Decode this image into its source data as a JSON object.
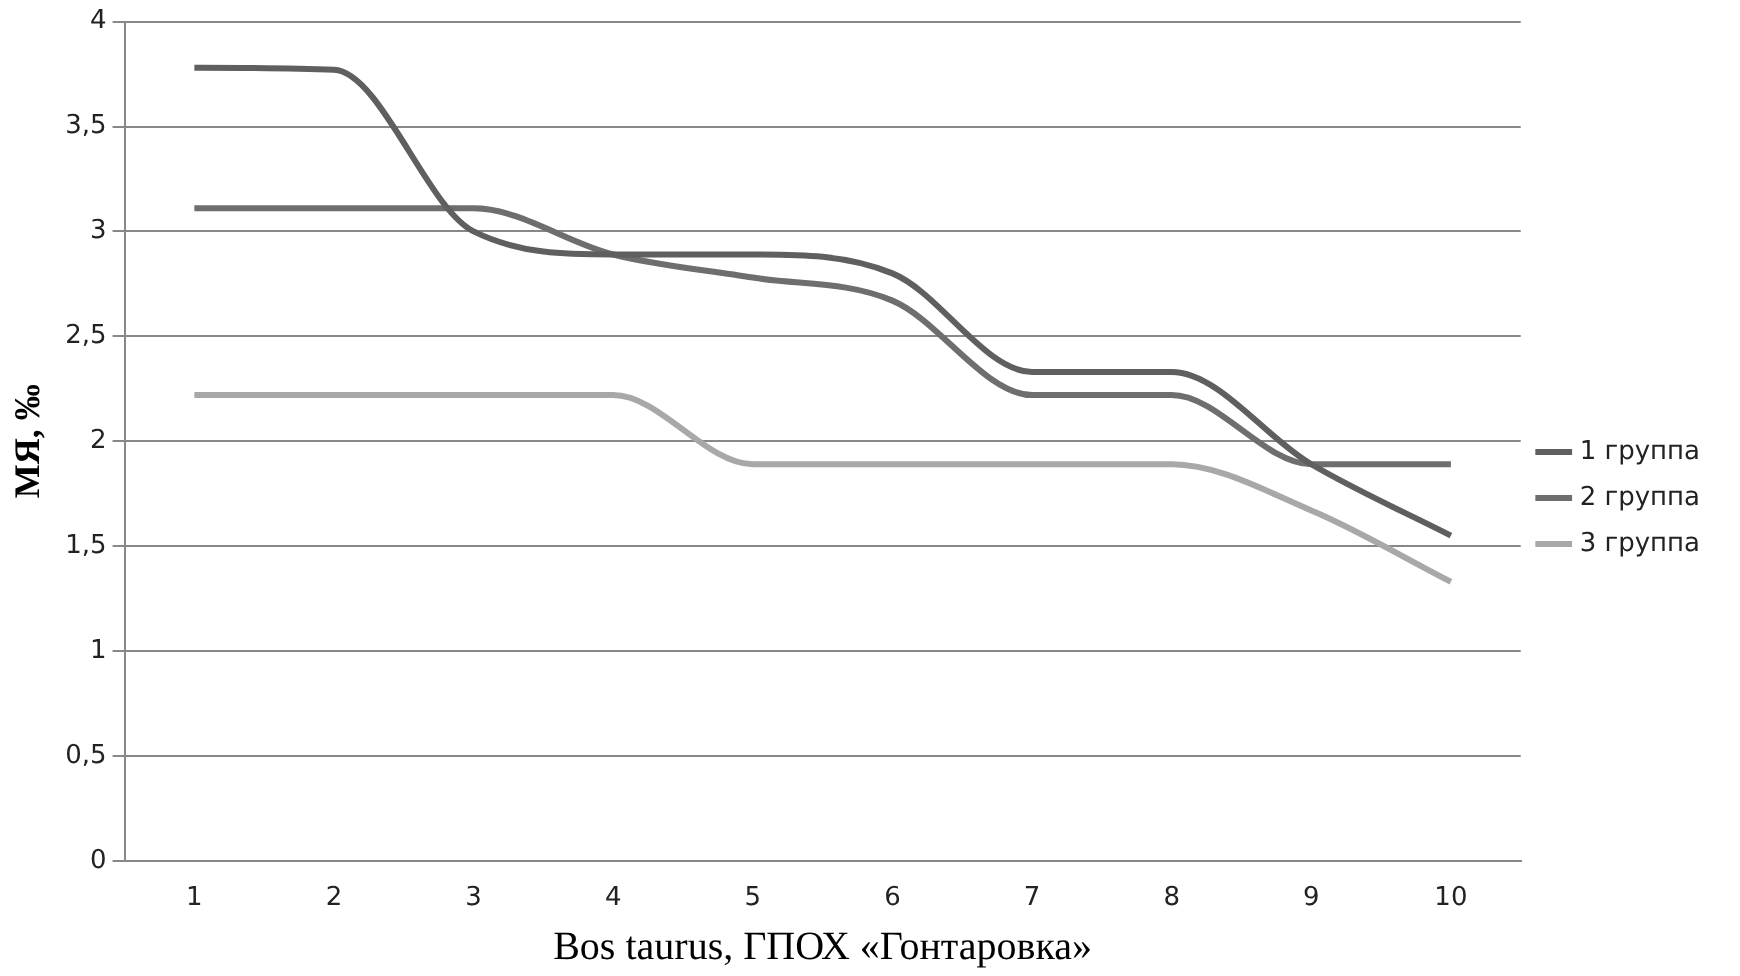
{
  "chart_data": {
    "type": "line",
    "xlabel": "Bos taurus, ГПОХ «Гонтаровка»",
    "ylabel": "МЯ, ‰",
    "categories": [
      "1",
      "2",
      "3",
      "4",
      "5",
      "6",
      "7",
      "8",
      "9",
      "10"
    ],
    "ylim": [
      0,
      4
    ],
    "yticks": [
      0,
      {
        "value": 0.5,
        "label": "0,5"
      },
      1,
      {
        "value": 1.5,
        "label": "1,5"
      },
      2,
      {
        "value": 2.5,
        "label": "2,5"
      },
      3,
      {
        "value": 3.5,
        "label": "3,5"
      },
      4
    ],
    "grid": "y",
    "legend": "right",
    "marker": "none",
    "line_style": "solid",
    "series": [
      {
        "name": "1 группа",
        "color": "#5f5f5f",
        "values": [
          3.78,
          3.77,
          3.0,
          2.89,
          2.89,
          2.8,
          2.33,
          2.33,
          1.89,
          1.55
        ]
      },
      {
        "name": "2 группа",
        "color": "#6e6e6e",
        "values": [
          3.11,
          3.11,
          3.11,
          2.89,
          2.78,
          2.67,
          2.22,
          2.22,
          1.89,
          1.89
        ]
      },
      {
        "name": "3 группа",
        "color": "#a8a8a8",
        "values": [
          2.22,
          2.22,
          2.22,
          2.22,
          1.89,
          1.89,
          1.89,
          1.89,
          1.67,
          1.33
        ]
      }
    ]
  }
}
